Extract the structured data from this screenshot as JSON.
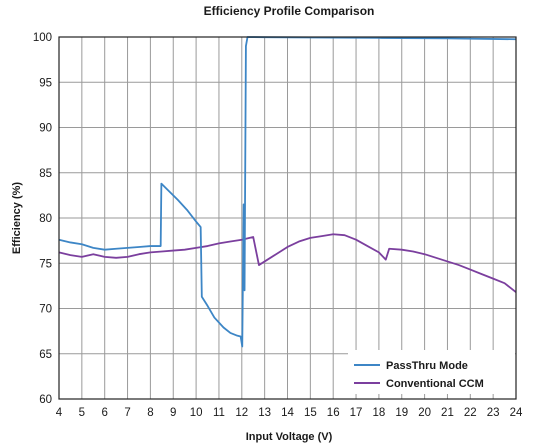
{
  "chart_data": {
    "type": "line",
    "title": "Efficiency Profile Comparison",
    "xlabel": "Input Voltage (V)",
    "ylabel": "Efficiency (%)",
    "xlim": [
      4,
      24
    ],
    "ylim": [
      60,
      100
    ],
    "xticks": [
      4,
      5,
      6,
      7,
      8,
      9,
      10,
      11,
      12,
      13,
      14,
      15,
      16,
      17,
      18,
      19,
      20,
      21,
      22,
      23,
      24
    ],
    "yticks": [
      60,
      65,
      70,
      75,
      80,
      85,
      90,
      95,
      100
    ],
    "grid": true,
    "legend_position": "bottom-right",
    "series": [
      {
        "name": "PassThru Mode",
        "color": "#3d86c6",
        "points": [
          [
            4.0,
            77.6
          ],
          [
            4.5,
            77.3
          ],
          [
            5.0,
            77.1
          ],
          [
            5.5,
            76.7
          ],
          [
            6.0,
            76.5
          ],
          [
            6.5,
            76.6
          ],
          [
            7.0,
            76.7
          ],
          [
            7.5,
            76.8
          ],
          [
            8.0,
            76.9
          ],
          [
            8.45,
            76.9
          ],
          [
            8.48,
            83.8
          ],
          [
            8.8,
            83.0
          ],
          [
            9.2,
            82.0
          ],
          [
            9.6,
            80.9
          ],
          [
            10.0,
            79.6
          ],
          [
            10.2,
            79.0
          ],
          [
            10.25,
            71.3
          ],
          [
            10.5,
            70.3
          ],
          [
            10.8,
            69.0
          ],
          [
            11.2,
            67.9
          ],
          [
            11.5,
            67.3
          ],
          [
            11.8,
            67.0
          ],
          [
            11.95,
            66.9
          ],
          [
            12.02,
            65.8
          ],
          [
            12.08,
            81.5
          ],
          [
            12.12,
            72.0
          ],
          [
            12.18,
            99.0
          ],
          [
            12.25,
            100.0
          ],
          [
            13.0,
            99.98
          ],
          [
            15.0,
            99.95
          ],
          [
            18.0,
            99.9
          ],
          [
            21.0,
            99.85
          ],
          [
            24.0,
            99.75
          ]
        ]
      },
      {
        "name": "Conventional CCM",
        "color": "#7b3f9e",
        "points": [
          [
            4.0,
            76.2
          ],
          [
            4.5,
            75.9
          ],
          [
            5.0,
            75.7
          ],
          [
            5.5,
            76.0
          ],
          [
            6.0,
            75.7
          ],
          [
            6.5,
            75.6
          ],
          [
            7.0,
            75.7
          ],
          [
            7.5,
            76.0
          ],
          [
            8.0,
            76.2
          ],
          [
            8.5,
            76.3
          ],
          [
            9.0,
            76.4
          ],
          [
            9.5,
            76.5
          ],
          [
            10.0,
            76.7
          ],
          [
            10.5,
            76.9
          ],
          [
            11.0,
            77.2
          ],
          [
            11.5,
            77.4
          ],
          [
            12.0,
            77.6
          ],
          [
            12.5,
            77.9
          ],
          [
            12.75,
            74.8
          ],
          [
            13.0,
            75.2
          ],
          [
            13.5,
            76.0
          ],
          [
            14.0,
            76.8
          ],
          [
            14.5,
            77.4
          ],
          [
            15.0,
            77.8
          ],
          [
            15.5,
            78.0
          ],
          [
            16.0,
            78.2
          ],
          [
            16.5,
            78.1
          ],
          [
            17.0,
            77.6
          ],
          [
            17.5,
            76.9
          ],
          [
            18.0,
            76.2
          ],
          [
            18.3,
            75.4
          ],
          [
            18.45,
            76.6
          ],
          [
            19.0,
            76.5
          ],
          [
            19.5,
            76.3
          ],
          [
            20.0,
            76.0
          ],
          [
            20.5,
            75.6
          ],
          [
            21.0,
            75.2
          ],
          [
            21.5,
            74.8
          ],
          [
            22.0,
            74.3
          ],
          [
            22.5,
            73.8
          ],
          [
            23.0,
            73.3
          ],
          [
            23.5,
            72.8
          ],
          [
            24.0,
            71.8
          ]
        ]
      }
    ]
  }
}
